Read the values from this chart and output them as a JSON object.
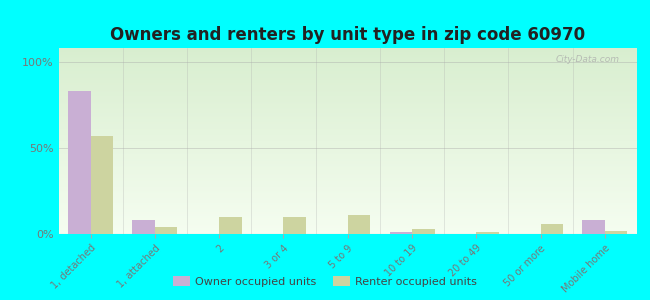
{
  "title": "Owners and renters by unit type in zip code 60970",
  "categories": [
    "1, detached",
    "1, attached",
    "2",
    "3 or 4",
    "5 to 9",
    "10 to 19",
    "20 to 49",
    "50 or more",
    "Mobile home"
  ],
  "owner_values": [
    83,
    8,
    0,
    0,
    0,
    1,
    0,
    0,
    8
  ],
  "renter_values": [
    57,
    4,
    10,
    10,
    11,
    3,
    1,
    6,
    2
  ],
  "owner_color": "#c9afd4",
  "renter_color": "#cdd4a0",
  "background_color": "#00ffff",
  "grad_top": "#d8eecf",
  "grad_bottom": "#f5fdf0",
  "ylabel_ticks": [
    "0%",
    "50%",
    "100%"
  ],
  "ytick_vals": [
    0,
    50,
    100
  ],
  "ylim": [
    0,
    108
  ],
  "watermark": "City-Data.com",
  "legend_owner": "Owner occupied units",
  "legend_renter": "Renter occupied units",
  "title_fontsize": 12,
  "bar_width": 0.35,
  "tick_color": "#777777"
}
